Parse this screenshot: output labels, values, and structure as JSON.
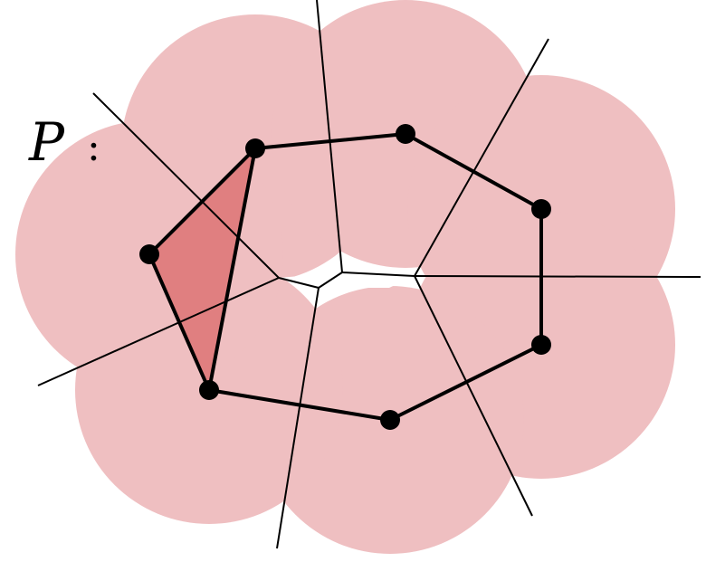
{
  "label": "P",
  "separator": ":",
  "colors": {
    "disk": "#efbfc1",
    "triangle": "#e07f80",
    "edge": "#000000",
    "vertex": "#000000"
  }
}
